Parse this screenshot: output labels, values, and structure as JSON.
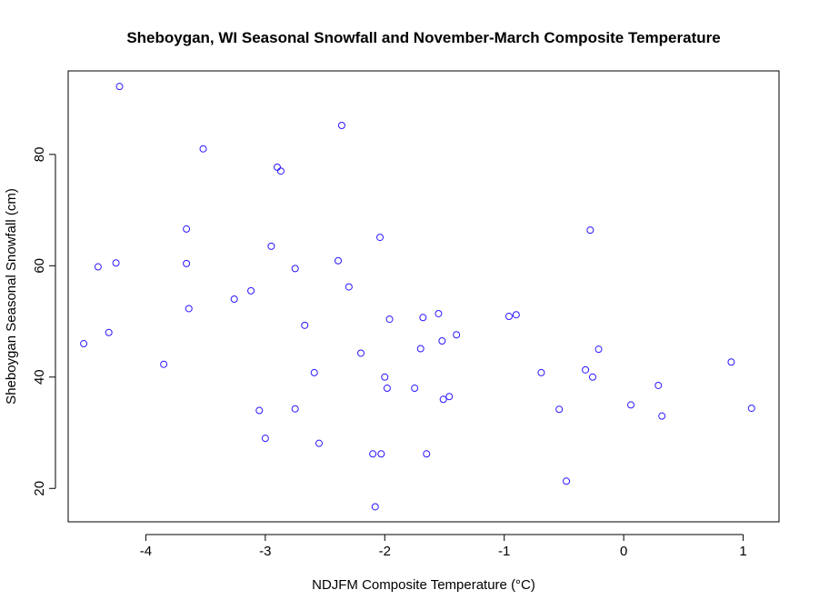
{
  "chart_data": {
    "type": "scatter",
    "title": "Sheboygan, WI Seasonal Snowfall and November-March Composite Temperature",
    "xlabel": "NDJFM Composite Temperature (°C)",
    "ylabel": "Sheboygan Seasonal Snowfall (cm)",
    "xlim": [
      -4.65,
      1.3
    ],
    "ylim": [
      14,
      95
    ],
    "x_ticks": [
      -4,
      -3,
      -2,
      -1,
      0,
      1
    ],
    "y_ticks": [
      20,
      40,
      60,
      80
    ],
    "grid": false,
    "point_color": "#2a18ff",
    "points": [
      {
        "x": -4.22,
        "y": 92.2
      },
      {
        "x": -2.36,
        "y": 85.2
      },
      {
        "x": -3.52,
        "y": 81.0
      },
      {
        "x": -2.9,
        "y": 77.7
      },
      {
        "x": -2.87,
        "y": 77.0
      },
      {
        "x": -3.66,
        "y": 66.6
      },
      {
        "x": -0.28,
        "y": 66.4
      },
      {
        "x": -2.04,
        "y": 65.1
      },
      {
        "x": -2.95,
        "y": 63.5
      },
      {
        "x": -2.39,
        "y": 60.9
      },
      {
        "x": -4.25,
        "y": 60.5
      },
      {
        "x": -3.66,
        "y": 60.4
      },
      {
        "x": -4.4,
        "y": 59.8
      },
      {
        "x": -2.75,
        "y": 59.5
      },
      {
        "x": -2.3,
        "y": 56.2
      },
      {
        "x": -3.12,
        "y": 55.5
      },
      {
        "x": -3.26,
        "y": 54.0
      },
      {
        "x": -3.64,
        "y": 52.3
      },
      {
        "x": -1.55,
        "y": 51.4
      },
      {
        "x": -0.9,
        "y": 51.2
      },
      {
        "x": -0.96,
        "y": 50.9
      },
      {
        "x": -1.68,
        "y": 50.7
      },
      {
        "x": -1.96,
        "y": 50.4
      },
      {
        "x": -2.67,
        "y": 49.3
      },
      {
        "x": -4.31,
        "y": 48.0
      },
      {
        "x": -1.4,
        "y": 47.6
      },
      {
        "x": -1.52,
        "y": 46.5
      },
      {
        "x": -4.52,
        "y": 46.0
      },
      {
        "x": -1.7,
        "y": 45.1
      },
      {
        "x": -0.21,
        "y": 45.0
      },
      {
        "x": -2.2,
        "y": 44.3
      },
      {
        "x": 0.9,
        "y": 42.7
      },
      {
        "x": -3.85,
        "y": 42.3
      },
      {
        "x": -0.32,
        "y": 41.3
      },
      {
        "x": -0.69,
        "y": 40.8
      },
      {
        "x": -2.59,
        "y": 40.8
      },
      {
        "x": -2.0,
        "y": 40.0
      },
      {
        "x": -0.26,
        "y": 40.0
      },
      {
        "x": 0.29,
        "y": 38.5
      },
      {
        "x": -1.98,
        "y": 38.0
      },
      {
        "x": -1.75,
        "y": 38.0
      },
      {
        "x": -1.46,
        "y": 36.5
      },
      {
        "x": -1.51,
        "y": 36.0
      },
      {
        "x": 0.06,
        "y": 35.0
      },
      {
        "x": 1.07,
        "y": 34.4
      },
      {
        "x": -2.75,
        "y": 34.3
      },
      {
        "x": -0.54,
        "y": 34.2
      },
      {
        "x": -3.05,
        "y": 34.0
      },
      {
        "x": 0.32,
        "y": 33.0
      },
      {
        "x": -3.0,
        "y": 29.0
      },
      {
        "x": -2.55,
        "y": 28.1
      },
      {
        "x": -2.1,
        "y": 26.2
      },
      {
        "x": -2.03,
        "y": 26.2
      },
      {
        "x": -1.65,
        "y": 26.2
      },
      {
        "x": -0.48,
        "y": 21.3
      },
      {
        "x": -2.08,
        "y": 16.7
      }
    ]
  }
}
